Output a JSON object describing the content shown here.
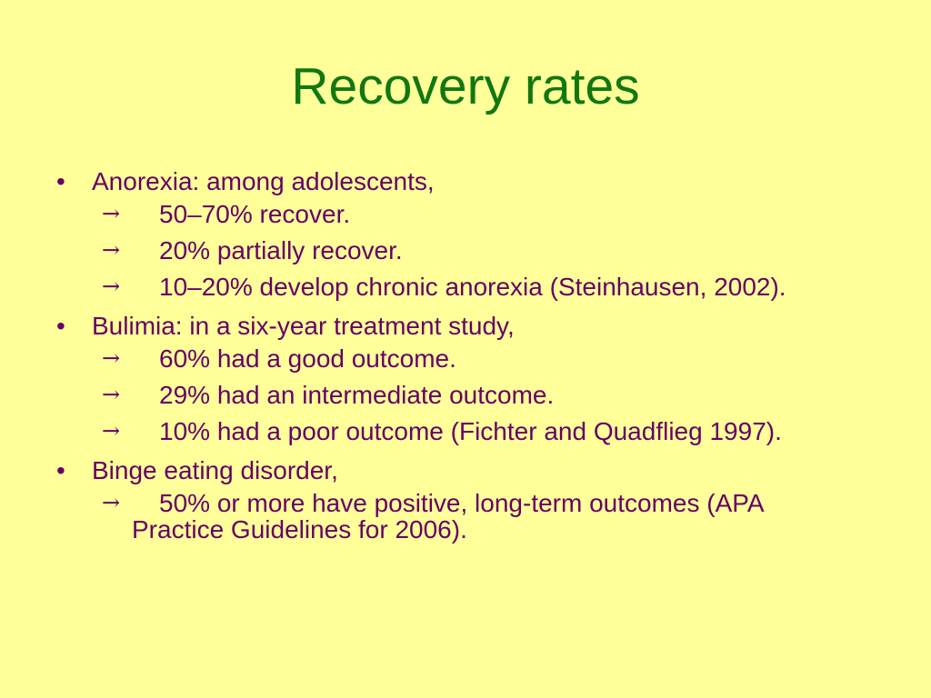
{
  "title": "Recovery rates",
  "bullet_glyph": "•",
  "arrow_glyph": "→",
  "sections": [
    {
      "label": "Anorexia: among adolescents,",
      "items": [
        "50–70% recover.",
        "20% partially recover.",
        "10–20% develop chronic anorexia (Steinhausen, 2002)."
      ]
    },
    {
      "label": "Bulimia: in a six-year treatment study,",
      "items": [
        "60% had a good outcome.",
        "29% had an intermediate outcome.",
        "10% had a poor outcome (Fichter and Quadflieg 1997)."
      ]
    },
    {
      "label": "Binge eating disorder,",
      "items": [
        "50% or more have positive, long-term outcomes (APA Practice Guidelines for 2006)."
      ]
    }
  ]
}
